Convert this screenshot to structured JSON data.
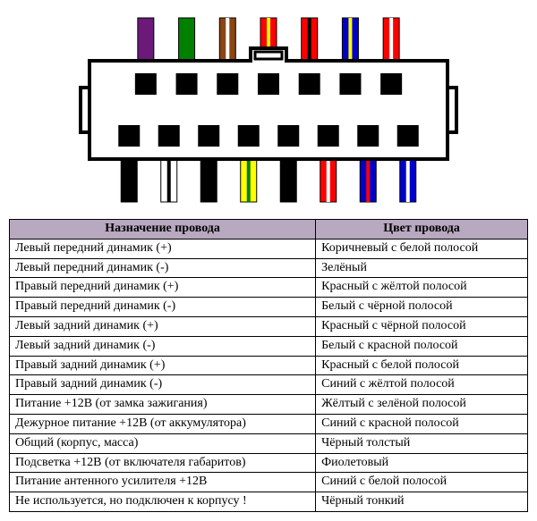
{
  "connector": {
    "body_stroke": "#000000",
    "body_fill": "#ffffff",
    "body_stroke_width": 4,
    "top_wires": [
      {
        "fill": "#6b1a7a",
        "stripe": null
      },
      {
        "fill": "#008000",
        "stripe": null
      },
      {
        "fill": "#8b4513",
        "stripe": "#ffffff"
      },
      {
        "fill": "#ff0000",
        "stripe": "#ffff00"
      },
      {
        "fill": "#ff0000",
        "stripe": "#000000"
      },
      {
        "fill": "#0000cc",
        "stripe": "#ffff00"
      },
      {
        "fill": "#ff0000",
        "stripe": "#ffffff"
      }
    ],
    "bottom_wires": [
      {
        "fill": "#000000",
        "stripe": null
      },
      {
        "fill": "#ffffff",
        "stripe": "#000000"
      },
      {
        "fill": "#000000",
        "stripe": null
      },
      {
        "fill": "#ffff00",
        "stripe": "#008000"
      },
      {
        "fill": "#000000",
        "stripe": null
      },
      {
        "fill": "#ff0000",
        "stripe": "#ffffff"
      },
      {
        "fill": "#0000cc",
        "stripe": "#ff0000"
      },
      {
        "fill": "#0000cc",
        "stripe": "#ffffff"
      }
    ],
    "wire_width": 18,
    "wire_height": 48,
    "stripe_width": 4
  },
  "table": {
    "header_bg": "#b8a8c0",
    "columns": [
      "Назначение провода",
      "Цвет провода"
    ],
    "rows": [
      [
        "Левый передний динамик (+)",
        "Коричневый с белой полосой"
      ],
      [
        "Левый передний динамик (-)",
        "Зелёный"
      ],
      [
        "Правый передний динамик (+)",
        "Красный с жёлтой полосой"
      ],
      [
        "Правый передний динамик (-)",
        "Белый с чёрной полосой"
      ],
      [
        "Левый задний динамик (+)",
        "Красный с чёрной полосой"
      ],
      [
        "Левый задний динамик (-)",
        "Белый с красной полосой"
      ],
      [
        "Правый задний динамик (+)",
        "Красный с белой полосой"
      ],
      [
        "Правый задний динамик (-)",
        "Синий с жёлтой полосой"
      ],
      [
        "Питание +12В (от замка зажигания)",
        "Жёлтый с зелёной полосой"
      ],
      [
        "Дежурное питание +12В (от аккумулятора)",
        "Синий с красной полосой"
      ],
      [
        "Общий (корпус, масса)",
        "Чёрный толстый"
      ],
      [
        "Подсветка +12В (от включателя габаритов)",
        "Фиолетовый"
      ],
      [
        "Питание антенного усилителя +12В",
        "Синий с белой полосой"
      ],
      [
        "Не используется, но подключен к корпусу !",
        "Чёрный тонкий"
      ]
    ]
  }
}
